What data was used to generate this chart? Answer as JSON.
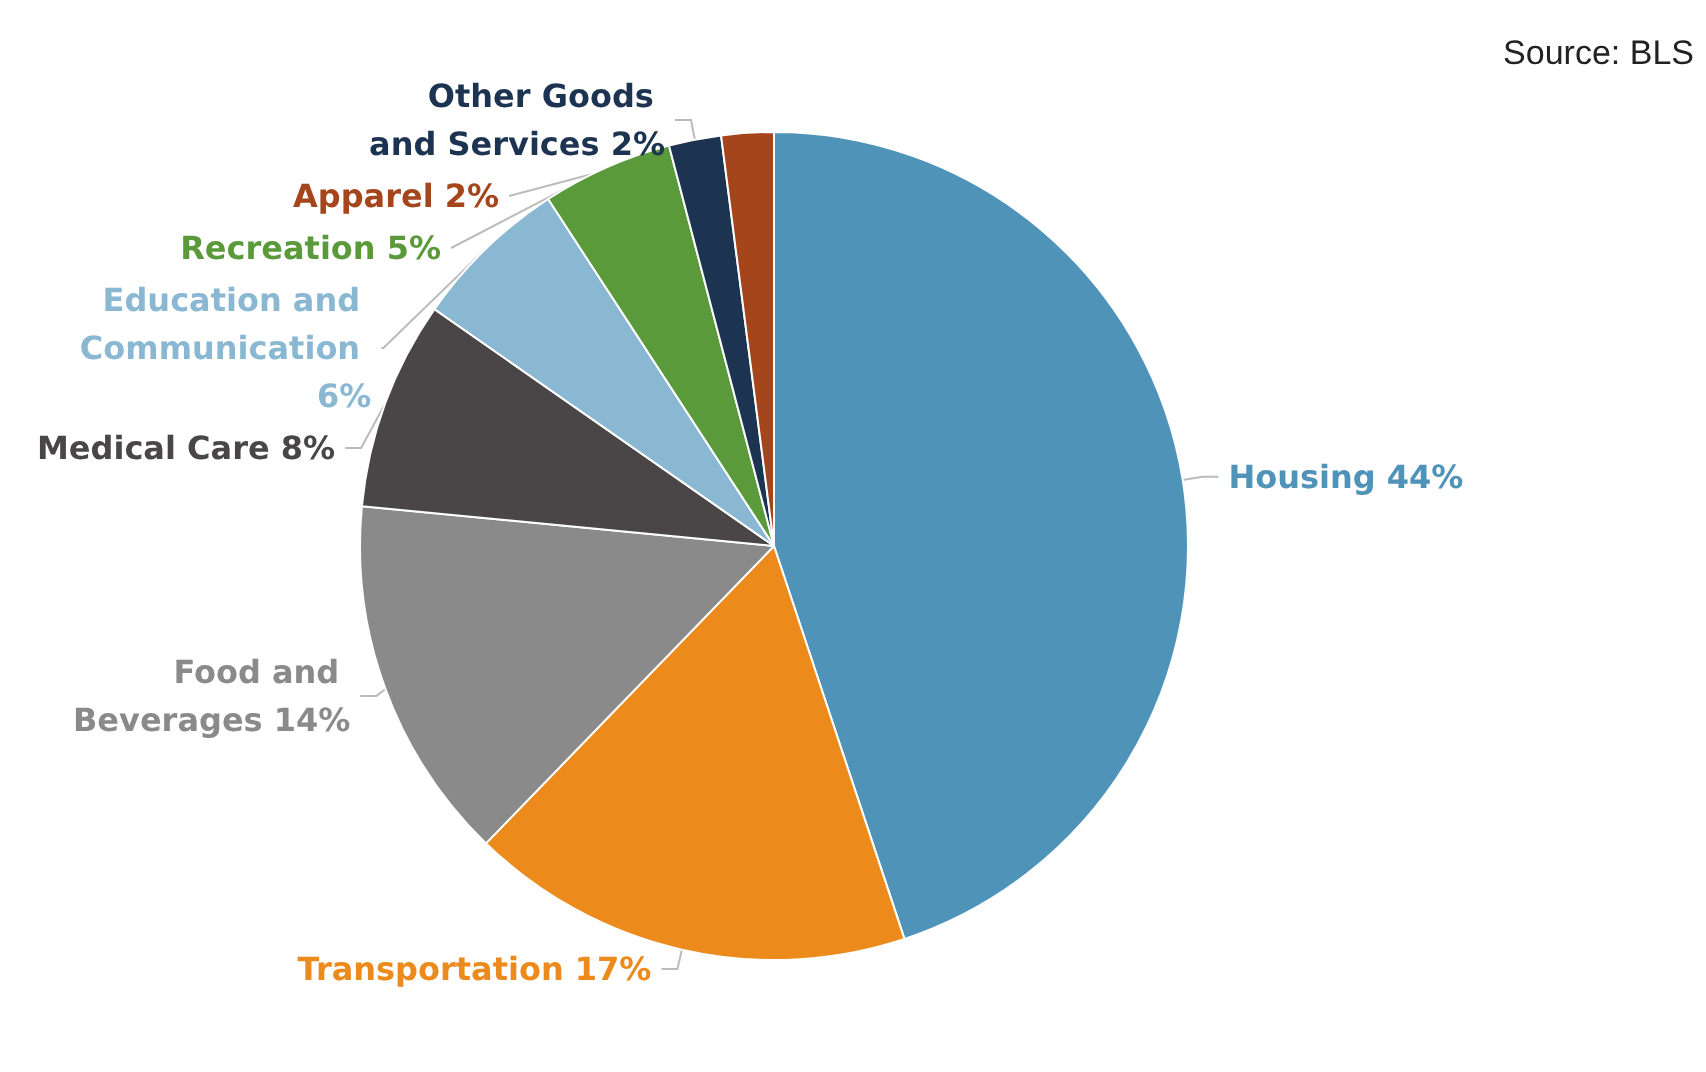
{
  "chart_data": {
    "type": "pie",
    "categories": [
      "Housing",
      "Transportation",
      "Food and Beverages",
      "Medical Care",
      "Education and Communication",
      "Recreation",
      "Other Goods and Services",
      "Apparel"
    ],
    "values": [
      44,
      17,
      14,
      8,
      6,
      5,
      2,
      2
    ],
    "value_labels": [
      "44%",
      "17%",
      "14%",
      "8%",
      "6%",
      "5%",
      "2%",
      "2%"
    ],
    "colors": [
      "#4f93b9",
      "#ec8a1c",
      "#8a8a8a",
      "#4a4647",
      "#8ab8d3",
      "#5a9a3a",
      "#1c3451",
      "#a5451b"
    ],
    "annotations": [
      "Source: BLS"
    ],
    "legend": false
  }
}
